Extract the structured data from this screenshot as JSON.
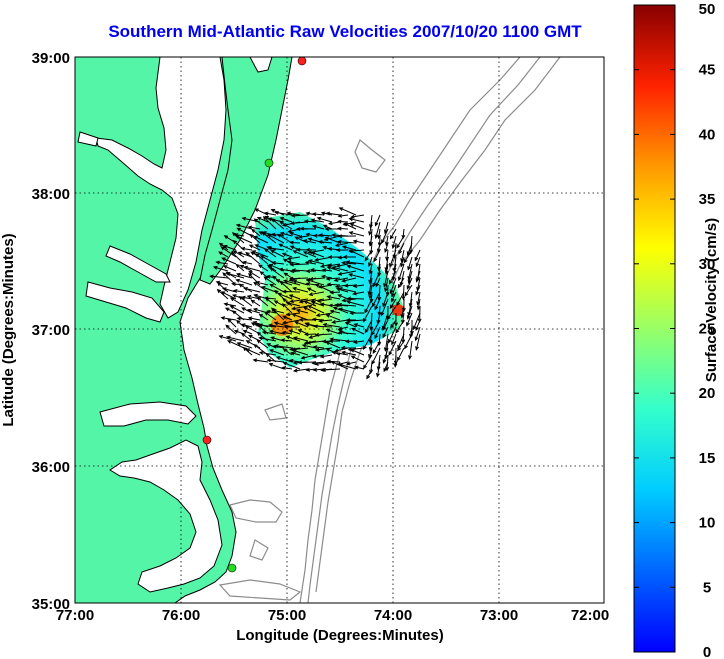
{
  "map": {
    "title": "Southern Mid-Atlantic Raw Velocities 2007/10/20 1100 GMT",
    "xlabel": "Longitude (Degrees:Minutes)",
    "ylabel": "Latitude (Degrees:Minutes)",
    "x_ticks": [
      "77:00",
      "76:00",
      "75:00",
      "74:00",
      "73:00",
      "72:00"
    ],
    "y_ticks": [
      "39:00",
      "38:00",
      "37:00",
      "36:00",
      "35:00"
    ],
    "lon_range": [
      -77,
      -72
    ],
    "lat_range": [
      35,
      39
    ],
    "grid": true,
    "colors": {
      "land": "#55f5a8",
      "coast": "#000000",
      "bathymetry": "#8c8c8c",
      "title": "#0000ee"
    }
  },
  "colorbar": {
    "label": "Surface Velocity (cm/s)",
    "ticks": [
      "0",
      "5",
      "10",
      "15",
      "20",
      "25",
      "30",
      "35",
      "40",
      "45",
      "50"
    ],
    "range": [
      0,
      50
    ],
    "colormap": "jet"
  },
  "stations": [
    {
      "color": "#ff2020"
    },
    {
      "color": "#22dd22"
    },
    {
      "color": "#ff2020"
    },
    {
      "color": "#22dd22"
    }
  ],
  "velocity_field": {
    "center_lat": 37.25,
    "center_lon": -74.8,
    "max_speed_cm_s": 40,
    "flow": "mostly westward with southwestward turning toward the coast"
  }
}
